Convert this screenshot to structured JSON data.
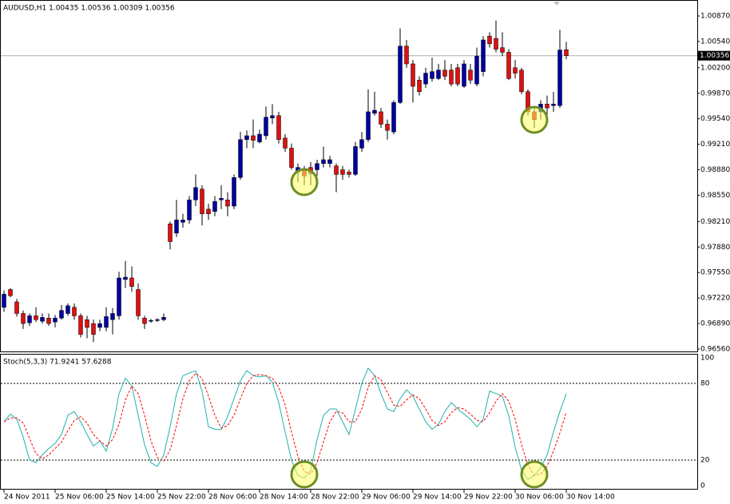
{
  "chart_data": [
    {
      "type": "candlestick",
      "title": "AUDUSD,H1  1.00435 1.00536 1.00309 1.00356",
      "open": [
        0.971,
        0.9733,
        0.9717,
        0.9702,
        0.969,
        0.9699,
        0.9692,
        0.9696,
        0.9691,
        0.9696,
        0.9702,
        0.971,
        0.9699,
        0.9694,
        0.9689,
        0.9684,
        0.9684,
        0.9694,
        0.9699,
        0.9746,
        0.9748,
        0.9733,
        0.9696,
        0.9692,
        0.9694,
        0.9694,
        0.9818,
        0.9806,
        0.982,
        0.9823,
        0.9849,
        0.9863,
        0.9837,
        0.9834,
        0.9849,
        0.9849,
        0.9841,
        0.9878,
        0.9927,
        0.9932,
        0.9924,
        0.9932,
        0.9955,
        0.9958,
        0.9929,
        0.9916,
        0.9885,
        0.9888,
        0.9891,
        0.9888,
        0.9896,
        0.9896,
        0.9893,
        0.9888,
        0.9885,
        0.9882,
        0.9916,
        0.9927,
        0.9961,
        0.9963,
        0.9947,
        0.9937,
        0.9975,
        1.0048,
        1.0025,
        1.0004,
        0.9999,
        1.0006,
        1.0006,
        1.0017,
        1.0017,
        1.002,
        0.9996,
        1.0017,
        0.9999,
        1.0015,
        1.0061,
        1.0058,
        1.0046,
        1.004,
        1.002,
        1.0017,
        0.9989,
        0.9963,
        0.9963,
        0.9973,
        0.9971,
        0.9971,
        1.00435
      ],
      "high": [
        0.9732,
        0.9735,
        0.9721,
        0.9706,
        0.9702,
        0.971,
        0.9702,
        0.9702,
        0.97,
        0.9713,
        0.9715,
        0.9715,
        0.9702,
        0.9699,
        0.9694,
        0.9694,
        0.971,
        0.9709,
        0.9756,
        0.977,
        0.9763,
        0.9741,
        0.9699,
        0.9695,
        0.9696,
        0.9702,
        0.9821,
        0.9849,
        0.9831,
        0.9854,
        0.9882,
        0.9868,
        0.9844,
        0.9854,
        0.9868,
        0.9859,
        0.9882,
        0.9937,
        0.9939,
        0.9953,
        0.994,
        0.997,
        0.9973,
        0.9963,
        0.9934,
        0.9922,
        0.9896,
        0.9893,
        0.9898,
        0.9901,
        0.9918,
        0.9906,
        0.9896,
        0.9893,
        0.9888,
        0.9924,
        0.9937,
        0.9992,
        0.9989,
        0.9968,
        0.9953,
        0.9978,
        1.0071,
        1.0056,
        1.003,
        1.0009,
        1.002,
        1.0033,
        1.0025,
        1.003,
        1.0025,
        1.0025,
        1.003,
        1.0025,
        1.0046,
        1.0061,
        1.0066,
        1.0081,
        1.0066,
        1.0044,
        1.003,
        1.002,
        0.9992,
        0.9968,
        0.9978,
        0.9984,
        0.9989,
        1.0069,
        1.00536
      ],
      "low": [
        0.9704,
        0.9723,
        0.9698,
        0.9682,
        0.9686,
        0.9691,
        0.9689,
        0.9686,
        0.9684,
        0.9694,
        0.9699,
        0.9694,
        0.9671,
        0.967,
        0.9665,
        0.9679,
        0.9679,
        0.9675,
        0.9694,
        0.9735,
        0.973,
        0.9694,
        0.9682,
        0.969,
        0.9691,
        0.9692,
        0.9785,
        0.9801,
        0.9813,
        0.9818,
        0.9841,
        0.9816,
        0.9823,
        0.9828,
        0.9837,
        0.9828,
        0.9837,
        0.9875,
        0.9916,
        0.9916,
        0.9922,
        0.9927,
        0.9947,
        0.9922,
        0.9911,
        0.9888,
        0.9872,
        0.9868,
        0.9868,
        0.988,
        0.9891,
        0.9891,
        0.9859,
        0.9875,
        0.9878,
        0.988,
        0.9911,
        0.9924,
        0.9958,
        0.9942,
        0.9927,
        0.9934,
        0.9973,
        1.002,
        0.9975,
        0.9984,
        0.9994,
        1.0002,
        1.0004,
        1.0004,
        0.9996,
        0.9996,
        0.9994,
        0.9999,
        0.9996,
        1.0009,
        1.0046,
        1.004,
        1.0035,
        1.0004,
        1.0006,
        0.9986,
        0.9958,
        0.9942,
        0.9953,
        0.9958,
        0.9963,
        0.9968,
        1.00309
      ],
      "close": [
        0.9727,
        0.9725,
        0.9702,
        0.9689,
        0.9699,
        0.9694,
        0.9697,
        0.9689,
        0.9696,
        0.9706,
        0.9712,
        0.9699,
        0.9675,
        0.9684,
        0.9675,
        0.9689,
        0.9698,
        0.9702,
        0.9748,
        0.9749,
        0.9737,
        0.9699,
        0.9689,
        0.9693,
        0.9694,
        0.9697,
        0.9795,
        0.9823,
        0.9823,
        0.9849,
        0.9865,
        0.9831,
        0.9831,
        0.9847,
        0.9851,
        0.9841,
        0.9878,
        0.9927,
        0.9932,
        0.9926,
        0.9934,
        0.9956,
        0.9958,
        0.9927,
        0.9916,
        0.9891,
        0.9891,
        0.988,
        0.9883,
        0.9896,
        0.9901,
        0.9901,
        0.9882,
        0.9882,
        0.9882,
        0.9918,
        0.9927,
        0.9963,
        0.9965,
        0.9947,
        0.9939,
        0.9975,
        1.0048,
        1.0025,
        0.9996,
        0.9989,
        1.0013,
        1.0015,
        1.0017,
        1.0009,
        0.9999,
        0.9999,
        1.0025,
        1.0004,
        1.0035,
        1.0056,
        1.0051,
        1.0044,
        1.004,
        1.0006,
        1.0013,
        0.9989,
        0.9963,
        0.9953,
        0.9973,
        0.9968,
        0.9973,
        1.0043,
        1.00356
      ],
      "up_color": "#0000a0",
      "down_color": "#e01010",
      "wick_color": "#000000",
      "ylim": [
        0.9656,
        1.0087
      ],
      "yticks": [
        {
          "value": 1.0087,
          "label": "1.00870"
        },
        {
          "value": 1.0054,
          "label": "1.00540"
        },
        {
          "value": 1.002,
          "label": "1.00200"
        },
        {
          "value": 0.9987,
          "label": "0.99870"
        },
        {
          "value": 0.9954,
          "label": "0.99540"
        },
        {
          "value": 0.9921,
          "label": "0.99210"
        },
        {
          "value": 0.9888,
          "label": "0.98880"
        },
        {
          "value": 0.9855,
          "label": "0.98550"
        },
        {
          "value": 0.9821,
          "label": "0.98210"
        },
        {
          "value": 0.9788,
          "label": "0.97880"
        },
        {
          "value": 0.9755,
          "label": "0.97550"
        },
        {
          "value": 0.9722,
          "label": "0.97220"
        },
        {
          "value": 0.9689,
          "label": "0.96890"
        },
        {
          "value": 0.9656,
          "label": "0.96560"
        }
      ],
      "current_price": 1.00356
    },
    {
      "type": "line",
      "title": "Stoch(5,3,3) 71.9241 57.6288",
      "categories": [
        "24 Nov 2011",
        null,
        null,
        null,
        null,
        null,
        null,
        null,
        "25 Nov 06:00",
        null,
        null,
        null,
        null,
        null,
        null,
        null,
        "25 Nov 14:00",
        null,
        null,
        null,
        null,
        null,
        null,
        null,
        "25 Nov 22:00",
        null,
        null,
        null,
        null,
        null,
        null,
        null,
        "28 Nov 06:00",
        null,
        null,
        null,
        null,
        null,
        null,
        null,
        "28 Nov 14:00",
        null,
        null,
        null,
        null,
        null,
        null,
        null,
        "28 Nov 22:00",
        null,
        null,
        null,
        null,
        null,
        null,
        null,
        "29 Nov 06:00",
        null,
        null,
        null,
        null,
        null,
        null,
        null,
        "29 Nov 14:00",
        null,
        null,
        null,
        null,
        null,
        null,
        null,
        "29 Nov 22:00",
        null,
        null,
        null,
        null,
        null,
        null,
        null,
        "30 Nov 06:00",
        null,
        null,
        null,
        null,
        null,
        null,
        null,
        "30 Nov 14:00"
      ],
      "series": [
        {
          "color": "#20b2aa",
          "values": [
            50,
            56,
            52,
            38,
            20,
            18,
            24,
            29,
            33,
            40,
            55,
            58,
            50,
            40,
            31,
            35,
            27,
            45,
            72,
            84,
            78,
            55,
            32,
            18,
            15,
            24,
            46,
            72,
            86,
            88,
            90,
            74,
            46,
            44,
            44,
            54,
            68,
            82,
            90,
            86,
            85,
            86,
            81,
            65,
            42,
            20,
            8,
            6,
            12,
            36,
            55,
            60,
            60,
            50,
            40,
            60,
            80,
            92,
            86,
            72,
            60,
            58,
            68,
            75,
            70,
            60,
            50,
            44,
            48,
            58,
            65,
            60,
            56,
            52,
            46,
            52,
            74,
            72,
            70,
            55,
            30,
            12,
            5,
            8,
            14,
            24,
            42,
            58,
            71.9241
          ]
        },
        {
          "color": "#ff0000",
          "dashed": true,
          "values": [
            50,
            53,
            53,
            49,
            37,
            25,
            21,
            24,
            29,
            34,
            43,
            51,
            54,
            49,
            40,
            35,
            31,
            36,
            48,
            67,
            78,
            72,
            55,
            35,
            22,
            19,
            28,
            47,
            68,
            82,
            88,
            84,
            70,
            55,
            45,
            47,
            55,
            68,
            80,
            86,
            87,
            86,
            84,
            77,
            63,
            42,
            23,
            11,
            9,
            18,
            34,
            50,
            58,
            57,
            50,
            50,
            60,
            77,
            86,
            83,
            73,
            63,
            62,
            67,
            71,
            68,
            60,
            51,
            47,
            50,
            57,
            61,
            60,
            56,
            51,
            50,
            57,
            66,
            72,
            66,
            52,
            32,
            16,
            8,
            9,
            15,
            27,
            41,
            57.6288
          ]
        }
      ],
      "ylim": [
        0,
        100
      ],
      "yticks": [
        0,
        20,
        80,
        100
      ]
    }
  ]
}
